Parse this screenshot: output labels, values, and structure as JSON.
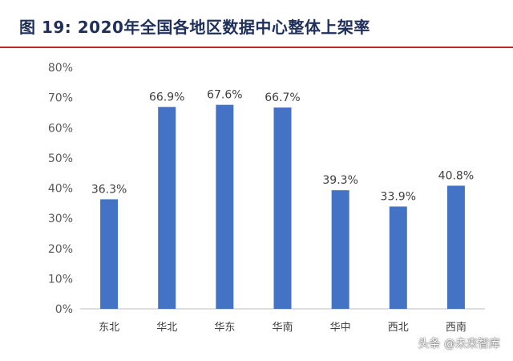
{
  "header": {
    "figure_title": "图  19:  2020年全国各地区数据中心整体上架率"
  },
  "watermark": {
    "text": "头条 @未来智库"
  },
  "chart_data": {
    "type": "bar",
    "title": "",
    "xlabel": "",
    "ylabel": "",
    "categories": [
      "东北",
      "华北",
      "华东",
      "华南",
      "华中",
      "西北",
      "西南"
    ],
    "values": [
      36.3,
      66.9,
      67.6,
      66.7,
      39.3,
      33.9,
      40.8
    ],
    "value_labels": [
      "36.3%",
      "66.9%",
      "67.6%",
      "66.7%",
      "39.3%",
      "33.9%",
      "40.8%"
    ],
    "ylim": [
      0,
      80
    ],
    "yticks": [
      0,
      10,
      20,
      30,
      40,
      50,
      60,
      70,
      80
    ],
    "ytick_labels": [
      "0%",
      "10%",
      "20%",
      "30%",
      "40%",
      "50%",
      "60%",
      "70%",
      "80%"
    ],
    "grid": false,
    "legend": "none",
    "bar_color": "#4472c4"
  }
}
